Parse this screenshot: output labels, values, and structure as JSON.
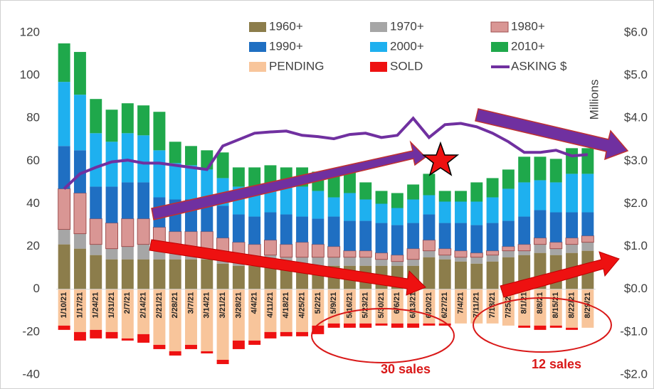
{
  "chart_data": {
    "type": "bar",
    "categories": [
      "1/10/21",
      "1/17/21",
      "1/24/21",
      "1/31/21",
      "2/7/21",
      "2/14/21",
      "2/21/21",
      "2/28/21",
      "3/7/21",
      "3/14/21",
      "3/21/21",
      "3/28/21",
      "4/4/21",
      "4/11/21",
      "4/18/21",
      "4/25/21",
      "5/2/21",
      "5/9/21",
      "5/16/21",
      "5/23/21",
      "5/30/21",
      "6/6/21",
      "6/13/21",
      "6/20/21",
      "6/27/21",
      "7/4/21",
      "7/11/21",
      "7/18/21",
      "7/25/21",
      "8/1/21",
      "8/8/21",
      "8/15/21",
      "8/22/21",
      "8/29/21"
    ],
    "series": [
      {
        "name": "1960+",
        "color": "#8c7d4b",
        "values": [
          21,
          19,
          16,
          14,
          14,
          14,
          14,
          14,
          14,
          14,
          12,
          11,
          11,
          12,
          11,
          11,
          11,
          11,
          11,
          11,
          11,
          11,
          11,
          15,
          14,
          13,
          12,
          13,
          15,
          16,
          17,
          16,
          17,
          18
        ]
      },
      {
        "name": "1970+",
        "color": "#a6a6a6",
        "values": [
          7,
          7,
          5,
          5,
          6,
          7,
          5,
          4,
          4,
          4,
          4,
          3,
          3,
          4,
          4,
          4,
          4,
          4,
          4,
          4,
          3,
          2,
          3,
          3,
          2,
          2,
          3,
          3,
          3,
          2,
          4,
          3,
          4,
          4
        ]
      },
      {
        "name": "1980+",
        "color": "#d99694",
        "values": [
          19,
          19,
          12,
          12,
          13,
          12,
          10,
          9,
          9,
          9,
          8,
          8,
          7,
          7,
          6,
          7,
          6,
          5,
          3,
          3,
          3,
          3,
          5,
          5,
          3,
          3,
          2,
          2,
          2,
          3,
          3,
          3,
          3,
          3
        ]
      },
      {
        "name": "1990+",
        "color": "#1f6fc2",
        "values": [
          20,
          20,
          15,
          17,
          17,
          17,
          14,
          15,
          15,
          14,
          15,
          13,
          13,
          13,
          14,
          12,
          12,
          14,
          14,
          14,
          14,
          14,
          12,
          12,
          12,
          13,
          13,
          13,
          12,
          13,
          13,
          14,
          12,
          11
        ]
      },
      {
        "name": "2000+",
        "color": "#1eb0ef",
        "values": [
          30,
          26,
          25,
          21,
          23,
          22,
          22,
          17,
          16,
          15,
          13,
          13,
          14,
          13,
          14,
          14,
          13,
          9,
          13,
          10,
          9,
          8,
          11,
          9,
          10,
          10,
          11,
          12,
          15,
          16,
          14,
          14,
          18,
          18
        ]
      },
      {
        "name": "2010+",
        "color": "#1fa84b",
        "values": [
          18,
          20,
          16,
          15,
          14,
          14,
          18,
          10,
          9,
          9,
          12,
          9,
          9,
          9,
          8,
          9,
          9,
          10,
          10,
          8,
          6,
          7,
          7,
          10,
          5,
          5,
          9,
          9,
          9,
          12,
          11,
          11,
          12,
          12
        ]
      },
      {
        "name": "PENDING",
        "color": "#f8c59b",
        "values": [
          -17,
          -20,
          -19,
          -20,
          -23,
          -21,
          -26,
          -29,
          -26,
          -29,
          -33,
          -24,
          -24,
          -20,
          -20,
          -20,
          -17,
          -16,
          -16,
          -16,
          -16,
          -16,
          -16,
          -16,
          -16,
          -16,
          -16,
          -16,
          -17,
          -17,
          -17,
          -17,
          -18,
          -18
        ]
      },
      {
        "name": "SOLD",
        "color": "#ee1111",
        "values": [
          -2,
          -4,
          -4,
          -3,
          -1,
          -4,
          -2,
          -2,
          -2,
          -1,
          -2,
          -4,
          -2,
          -3,
          -2,
          -2,
          -4,
          -2,
          -2,
          -2,
          -1,
          -2,
          -2,
          -1,
          -1,
          0,
          0,
          0,
          0,
          -1,
          -2,
          -1,
          -1,
          0
        ]
      },
      {
        "name": "ASKING $",
        "color": "#7030a0",
        "axis": "y2",
        "values": [
          2.35,
          2.7,
          2.85,
          2.98,
          3.02,
          2.95,
          2.95,
          2.9,
          2.85,
          2.8,
          3.35,
          3.5,
          3.65,
          3.68,
          3.7,
          3.6,
          3.57,
          3.52,
          3.62,
          3.65,
          3.55,
          3.6,
          4.0,
          3.55,
          3.85,
          3.88,
          3.8,
          3.65,
          3.45,
          3.2,
          3.2,
          3.25,
          3.12,
          3.15
        ]
      }
    ],
    "ylim": [
      -40,
      120
    ],
    "yticks": [
      -40,
      -20,
      0,
      20,
      40,
      60,
      80,
      100,
      120
    ],
    "y2lim": [
      -2,
      6
    ],
    "y2ticks": [
      {
        "value": -2,
        "label": "-$2.0"
      },
      {
        "value": -1,
        "label": "-$1.0"
      },
      {
        "value": 0,
        "label": "$0.0"
      },
      {
        "value": 1,
        "label": "$1.0"
      },
      {
        "value": 2,
        "label": "$2.0"
      },
      {
        "value": 3,
        "label": "$3.0"
      },
      {
        "value": 4,
        "label": "$4.0"
      },
      {
        "value": 5,
        "label": "$5.0"
      },
      {
        "value": 6,
        "label": "$6.0"
      }
    ],
    "y2label": "Millions",
    "annotations": [
      "30 sales",
      "12 sales"
    ]
  }
}
